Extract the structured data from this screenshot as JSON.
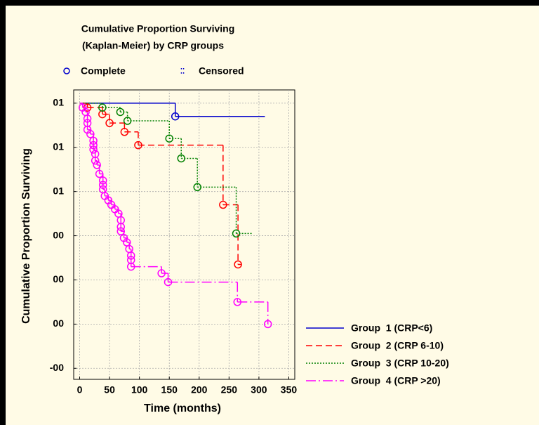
{
  "chart_data": {
    "type": "step",
    "title": [
      "Cumulative Proportion Surviving",
      "(Kaplan-Meier) by CRP groups"
    ],
    "marker_legend": [
      "Complete",
      "Censored"
    ],
    "xlabel": "Time (months)",
    "ylabel": "Cumulative Proportion Surviving",
    "xlim": [
      -10,
      360
    ],
    "xticks": [
      0,
      50,
      100,
      150,
      200,
      250,
      300,
      350
    ],
    "ylim": [
      -0.25,
      1.06
    ],
    "yticks": [
      {
        "value": 1.0,
        "label": "01"
      },
      {
        "value": 0.8,
        "label": "01"
      },
      {
        "value": 0.6,
        "label": "01"
      },
      {
        "value": 0.4,
        "label": "00"
      },
      {
        "value": 0.2,
        "label": "00"
      },
      {
        "value": 0.0,
        "label": "00"
      },
      {
        "value": -0.2,
        "label": "-00"
      }
    ],
    "grid": true,
    "legend": "lower right",
    "start_time": 0,
    "start_survival": 1.0,
    "series": [
      {
        "name": "Group  1 (CRP<6)",
        "color": "#0000cc",
        "dash": "none",
        "end_time": 310,
        "x": [
          160
        ],
        "values": [
          0.94
        ]
      },
      {
        "name": "Group  2 (CRP 6-10)",
        "color": "#ff0000",
        "dash": "9,5",
        "end_time": 270,
        "x": [
          13,
          38,
          50,
          75,
          98,
          240,
          265
        ],
        "values": [
          0.98,
          0.95,
          0.91,
          0.87,
          0.81,
          0.54,
          0.27
        ]
      },
      {
        "name": "Group  3 (CRP 10-20)",
        "color": "#008000",
        "dash": "2,2",
        "end_time": 290,
        "x": [
          38,
          68,
          80,
          150,
          170,
          197,
          262
        ],
        "values": [
          0.98,
          0.96,
          0.92,
          0.84,
          0.75,
          0.62,
          0.41
        ]
      },
      {
        "name": "Group  4 (CRP >20)",
        "color": "#ff00ff",
        "dash": "14,4,2,4",
        "end_time": 315,
        "x": [
          5,
          10,
          13,
          13,
          13,
          18,
          23,
          23,
          23,
          26,
          26,
          29,
          33,
          39,
          39,
          39,
          42,
          48,
          53,
          59,
          65,
          69,
          69,
          69,
          74,
          79,
          83,
          86,
          86,
          86,
          137,
          148,
          264,
          315
        ],
        "values": [
          0.98,
          0.96,
          0.93,
          0.91,
          0.88,
          0.86,
          0.83,
          0.81,
          0.79,
          0.77,
          0.74,
          0.72,
          0.68,
          0.65,
          0.63,
          0.61,
          0.58,
          0.56,
          0.54,
          0.52,
          0.5,
          0.47,
          0.44,
          0.42,
          0.39,
          0.37,
          0.34,
          0.31,
          0.29,
          0.26,
          0.23,
          0.19,
          0.1,
          0.0
        ]
      }
    ]
  }
}
